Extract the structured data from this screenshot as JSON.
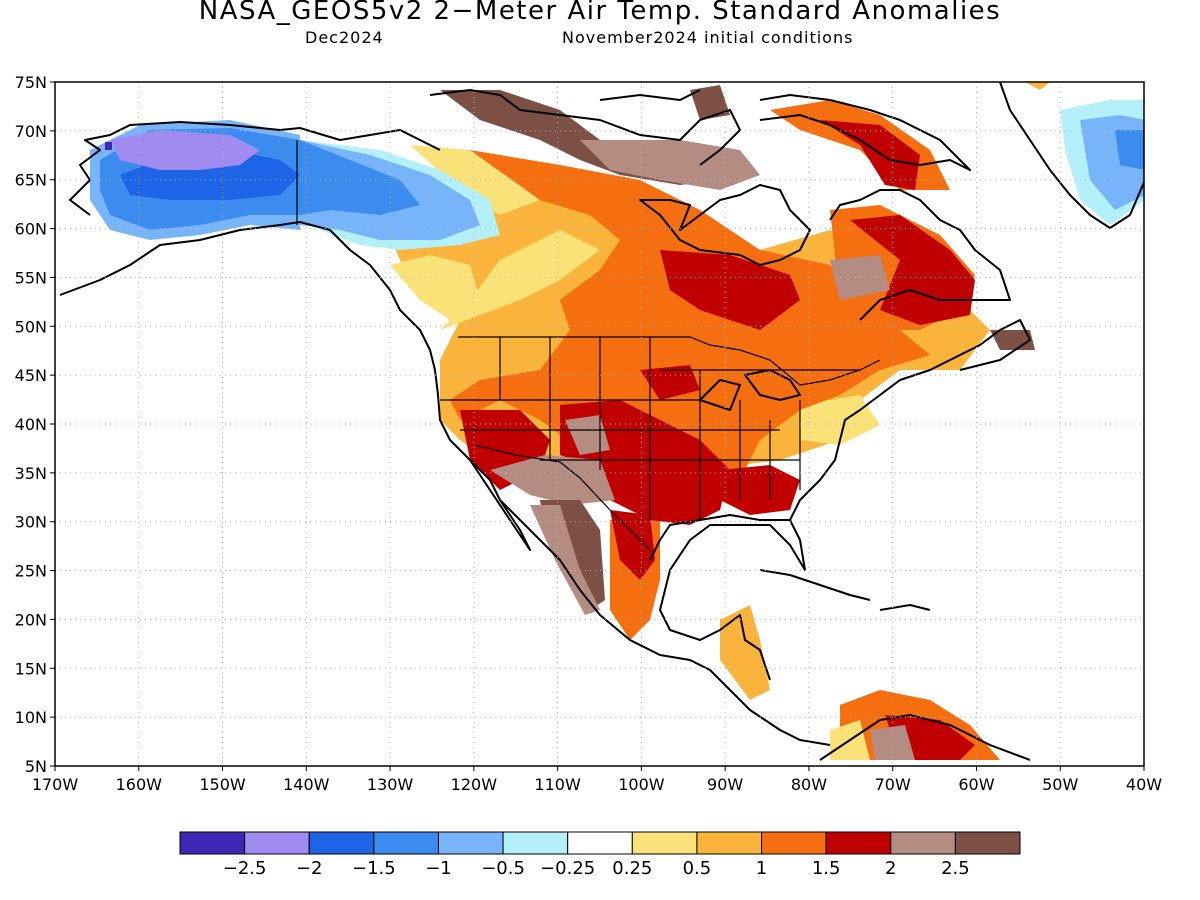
{
  "header": {
    "title": "NASA_GEOS5v2 2−Meter Air Temp. Standard Anomalies",
    "valid_month": "Dec2024",
    "init_conditions": "November2024 initial conditions"
  },
  "map": {
    "projection": "lat-lon (equirectangular)",
    "lon_range": [
      -170,
      -40
    ],
    "lat_range": [
      5,
      75
    ],
    "grid": "dotted",
    "lat_labels": [
      "75N",
      "70N",
      "65N",
      "60N",
      "55N",
      "50N",
      "45N",
      "40N",
      "35N",
      "30N",
      "25N",
      "20N",
      "15N",
      "10N",
      "5N"
    ],
    "lon_labels": [
      "170W",
      "160W",
      "150W",
      "140W",
      "130W",
      "120W",
      "110W",
      "100W",
      "90W",
      "80W",
      "70W",
      "60W",
      "50W",
      "40W"
    ]
  },
  "colorbar": {
    "colors": [
      "#3c28b4",
      "#a08cf0",
      "#1e64e6",
      "#3c8cf0",
      "#78b4fa",
      "#b4f0fa",
      "#ffffff",
      "#fae178",
      "#fab43c",
      "#f56e0f",
      "#c00000",
      "#b48c82",
      "#7d5046"
    ],
    "labels": [
      "−2.5",
      "−2",
      "−1.5",
      "−1",
      "−0.5",
      "−0.25",
      "0.25",
      "0.5",
      "1",
      "1.5",
      "2",
      "2.5"
    ]
  },
  "anomaly_regions": [
    {
      "name": "Alaska interior",
      "class": "-1.5",
      "color": "#3c8cf0"
    },
    {
      "name": "NW Alaska",
      "class": "-2",
      "color": "#a08cf0"
    },
    {
      "name": "Yukon",
      "class": "-1",
      "color": "#78b4fa"
    },
    {
      "name": "Greenland",
      "class": "-1",
      "color": "#78b4fa"
    },
    {
      "name": "Central Canada",
      "class": "1.5",
      "color": "#f56e0f"
    },
    {
      "name": "Southern Plains",
      "class": "2",
      "color": "#c00000"
    },
    {
      "name": "Labrador",
      "class": "2",
      "color": "#c00000"
    },
    {
      "name": "Northern Mexico",
      "class": "2.5",
      "color": "#7d5046"
    },
    {
      "name": "Arctic islands",
      "class": "2.5",
      "color": "#7d5046"
    },
    {
      "name": "Venezuela",
      "class": "1.5",
      "color": "#f56e0f"
    }
  ]
}
